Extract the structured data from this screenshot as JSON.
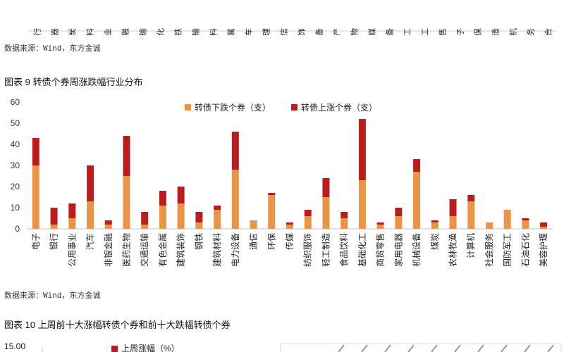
{
  "top_strip": {
    "labels": [
      "银行",
      "家用电器",
      "煤炭",
      "食品饮料",
      "公用事业",
      "非银金融",
      "交通运输",
      "石油石化",
      "钢铁",
      "交通运输",
      "建筑材料",
      "有色金属",
      "汽车",
      "美容护理",
      "通信",
      "纺织服饰",
      "机械设备",
      "房地产",
      "医药生物",
      "传媒",
      "电力设备",
      "基础化工",
      "国防军工",
      "商贸零售",
      "电子",
      "环保",
      "轻工制造",
      "计算机",
      "社会服务",
      "综合"
    ]
  },
  "source_top": "数据来源：Wind，东方金诚",
  "figure9": {
    "title": "图表 9  转债个券周涨跌幅行业分布",
    "legend": {
      "down": "转债下跌个券（支）",
      "up": "转债上涨个券（支）"
    }
  },
  "chart_data": {
    "type": "bar",
    "stacked": true,
    "title": "图表 9  转债个券周涨跌幅行业分布",
    "categories": [
      "电子",
      "银行",
      "公用事业",
      "汽车",
      "非银金融",
      "医药生物",
      "交通运输",
      "有色金属",
      "建筑装饰",
      "钢铁",
      "建筑材料",
      "电力设备",
      "通信",
      "环保",
      "传媒",
      "纺织服饰",
      "轻工制造",
      "食品饮料",
      "基础化工",
      "商贸零售",
      "家用电器",
      "机械设备",
      "煤炭",
      "农林牧渔",
      "计算机",
      "社会服务",
      "国防军工",
      "石油石化",
      "美容护理"
    ],
    "series": [
      {
        "name": "转债下跌个券（支）",
        "color": "#E8954A",
        "values": [
          30,
          2,
          5,
          13,
          2,
          25,
          2,
          11,
          12,
          3,
          9,
          28,
          4,
          16,
          2,
          6,
          15,
          5,
          23,
          2,
          6,
          27,
          3,
          6,
          13,
          3,
          9,
          4,
          1
        ]
      },
      {
        "name": "转债上涨个券（支）",
        "color": "#B81E1E",
        "values": [
          13,
          8,
          7,
          17,
          2,
          19,
          6,
          7,
          8,
          5,
          2,
          18,
          0,
          1,
          1,
          3,
          9,
          3,
          29,
          1,
          4,
          6,
          1,
          8,
          3,
          0,
          0,
          1,
          2
        ]
      }
    ],
    "ylim": [
      0,
      60
    ],
    "yticks": [
      0,
      10,
      20,
      30,
      40,
      50,
      60
    ],
    "legend_position": "top-center",
    "grid": false
  },
  "source_bottom": "数据来源：Wind，东方金诚",
  "figure10": {
    "title": "图表 10  上周前十大涨幅转债个券和前十大跌幅转债个券",
    "ytick_top": "15.00",
    "legend_partial": "上周涨幅（%）"
  }
}
